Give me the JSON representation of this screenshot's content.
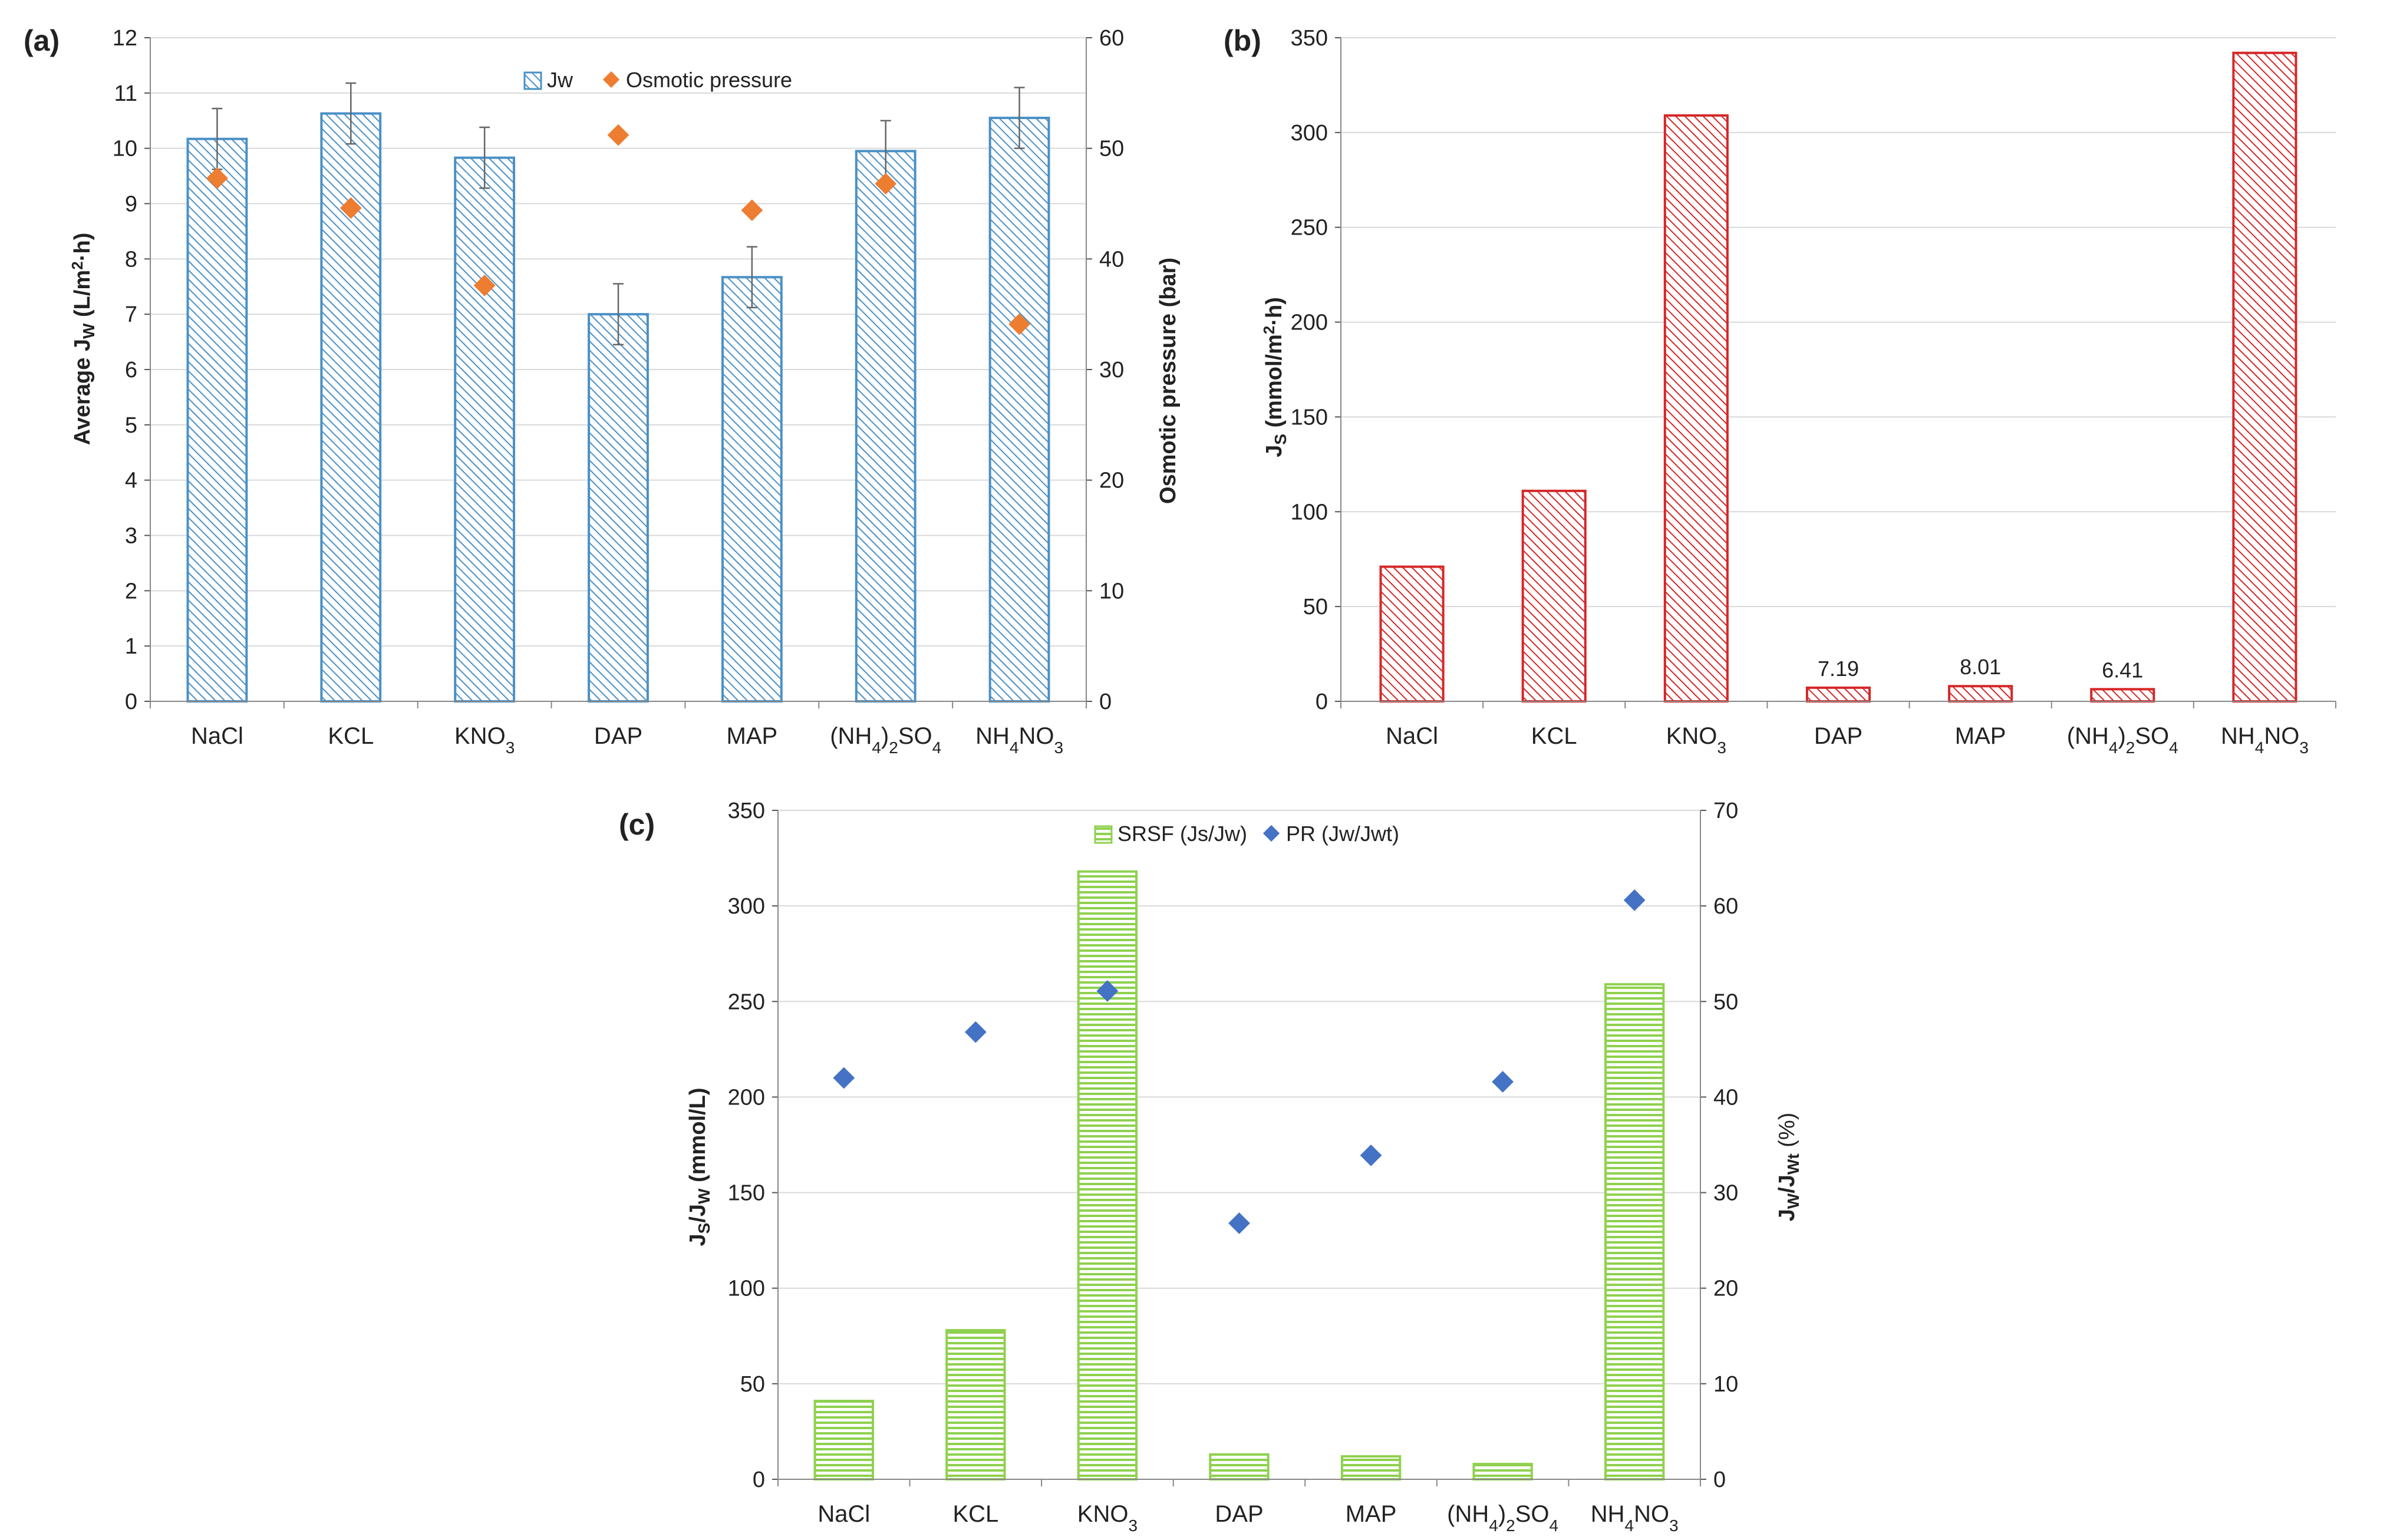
{
  "categories": [
    "NaCl",
    "KCL",
    "KNO3",
    "DAP",
    "MAP",
    "(NH4)2SO4",
    "NH4NO3"
  ],
  "chart_data": [
    {
      "panel": "(a)",
      "type": "bar",
      "legend_position": "top-center",
      "y_ticks": [
        "0",
        "1",
        "2",
        "3",
        "4",
        "5",
        "6",
        "7",
        "8",
        "9",
        "10",
        "11",
        "12"
      ],
      "y2_ticks": [
        "0",
        "10",
        "20",
        "30",
        "40",
        "50",
        "60"
      ],
      "ylim": [
        0,
        12
      ],
      "y2lim": [
        0,
        60
      ],
      "series": [
        {
          "name": "Jw",
          "kind": "bar",
          "axis": "left",
          "values": [
            10.17,
            10.63,
            9.83,
            7.0,
            7.67,
            9.95,
            10.55
          ],
          "errors": [
            0.55,
            0.55,
            0.55,
            0.55,
            0.55,
            0.55,
            0.55
          ],
          "color": "#4a90c6"
        },
        {
          "name": "Osmotic pressure",
          "kind": "marker",
          "axis": "right",
          "values": [
            47.3,
            44.6,
            37.6,
            51.2,
            44.4,
            46.8,
            34.1
          ],
          "color": "#ed7d31"
        }
      ]
    },
    {
      "panel": "(b)",
      "type": "bar",
      "y_ticks": [
        "0",
        "50",
        "100",
        "150",
        "200",
        "250",
        "300",
        "350"
      ],
      "ylim": [
        0,
        350
      ],
      "series": [
        {
          "name": "Js",
          "kind": "bar",
          "axis": "left",
          "values": [
            71,
            111,
            309,
            7.19,
            8.01,
            6.41,
            342
          ],
          "data_labels": [
            "",
            "",
            "",
            "7.19",
            "8.01",
            "6.41",
            ""
          ],
          "color": "#d62728"
        }
      ]
    },
    {
      "panel": "(c)",
      "type": "bar",
      "legend_position": "top-center",
      "y_ticks": [
        "0",
        "50",
        "100",
        "150",
        "200",
        "250",
        "300",
        "350"
      ],
      "y2_ticks": [
        "0",
        "10",
        "20",
        "30",
        "40",
        "50",
        "60",
        "70"
      ],
      "ylim": [
        0,
        350
      ],
      "y2lim": [
        0,
        70
      ],
      "series": [
        {
          "name": "SRSF (Js/Jw)",
          "kind": "bar",
          "axis": "left",
          "values": [
            41,
            78,
            318,
            13,
            12,
            8,
            259
          ],
          "color": "#8fd14f"
        },
        {
          "name": "PR (Jw/Jwt)",
          "kind": "marker",
          "axis": "right",
          "values": [
            42,
            46.8,
            51.1,
            26.8,
            33.9,
            41.6,
            60.6
          ],
          "color": "#4472c4"
        }
      ]
    }
  ]
}
